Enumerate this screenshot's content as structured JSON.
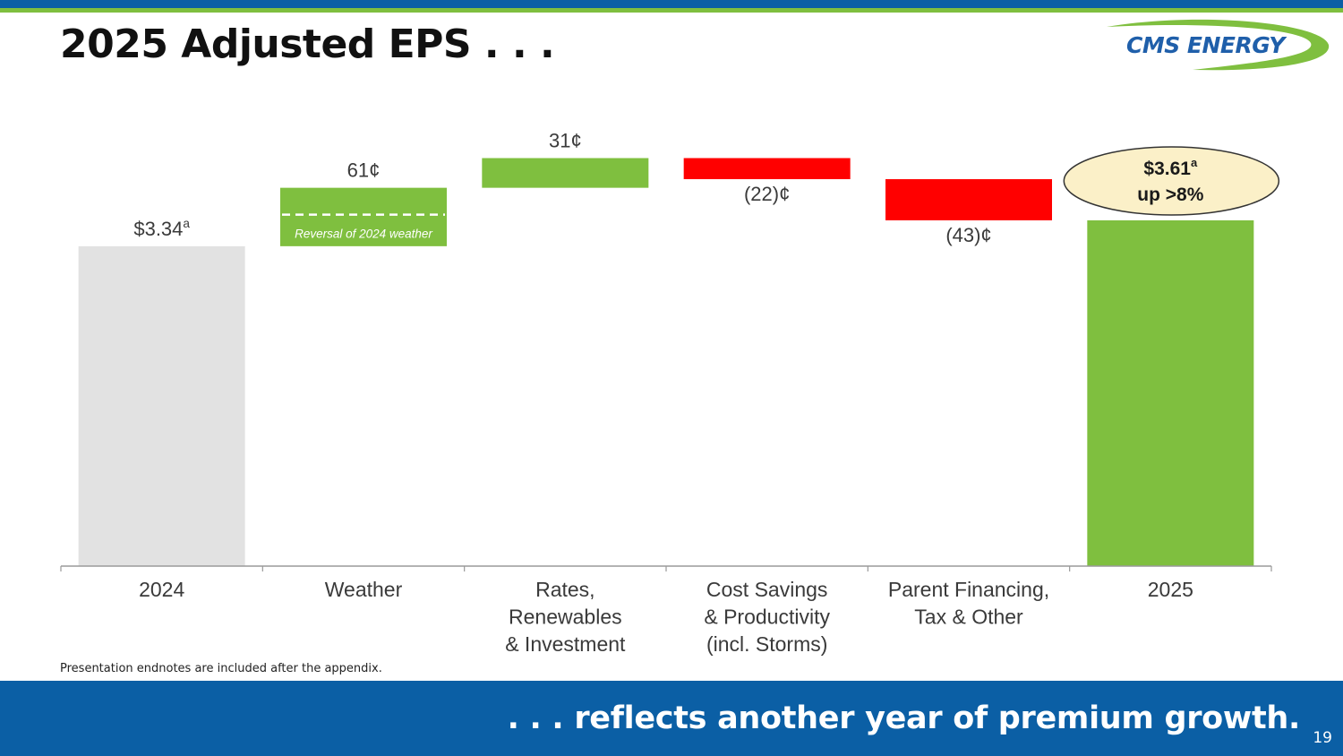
{
  "title": "2025 Adjusted EPS . . .",
  "logo": {
    "name": "CMS ENERGY",
    "colors": {
      "text": "#1f5faa",
      "swoosh": "#7fbf3f"
    }
  },
  "footnote": "Presentation endnotes are included after the appendix.",
  "footer": {
    "tagline": ". . . reflects another year of premium growth.",
    "page_number": "19"
  },
  "colors": {
    "brand_blue": "#0b5fa5",
    "brand_green": "#7fbf3f",
    "negative_red": "#ff0000",
    "baseline_gray": "#e2e2e2",
    "callout_fill": "#fbf0c8"
  },
  "chart_data": {
    "type": "waterfall",
    "unit": "EPS ($ per share)",
    "ylim": [
      0,
      3.8
    ],
    "categories": [
      "2024",
      "Weather",
      "Rates, Renewables & Investment",
      "Cost Savings & Productivity (incl. Storms)",
      "Parent Financing, Tax & Other",
      "2025"
    ],
    "category_lines": [
      [
        "2024"
      ],
      [
        "Weather"
      ],
      [
        "Rates,",
        "Renewables",
        "& Investment"
      ],
      [
        "Cost Savings",
        "& Productivity",
        "(incl. Storms)"
      ],
      [
        "Parent Financing,",
        "Tax & Other"
      ],
      [
        "2025"
      ]
    ],
    "bars": [
      {
        "kind": "total",
        "value": 3.34,
        "label": "$3.34",
        "superscript": "a",
        "color": "#e2e2e2"
      },
      {
        "kind": "delta",
        "value": 0.61,
        "label": "61¢",
        "color": "#7fbf3f",
        "annotation": "Reversal of 2024 weather",
        "annotation_value": 0.33
      },
      {
        "kind": "delta",
        "value": 0.31,
        "label": "31¢",
        "color": "#7fbf3f"
      },
      {
        "kind": "delta",
        "value": -0.22,
        "label": "(22)¢",
        "color": "#ff0000"
      },
      {
        "kind": "delta",
        "value": -0.43,
        "label": "(43)¢",
        "color": "#ff0000"
      },
      {
        "kind": "total",
        "value": 3.61,
        "label": "$3.61",
        "superscript": "a",
        "color": "#7fbf3f"
      }
    ],
    "callout": {
      "line1": "$3.61",
      "superscript": "a",
      "line2": "up >8%"
    }
  }
}
